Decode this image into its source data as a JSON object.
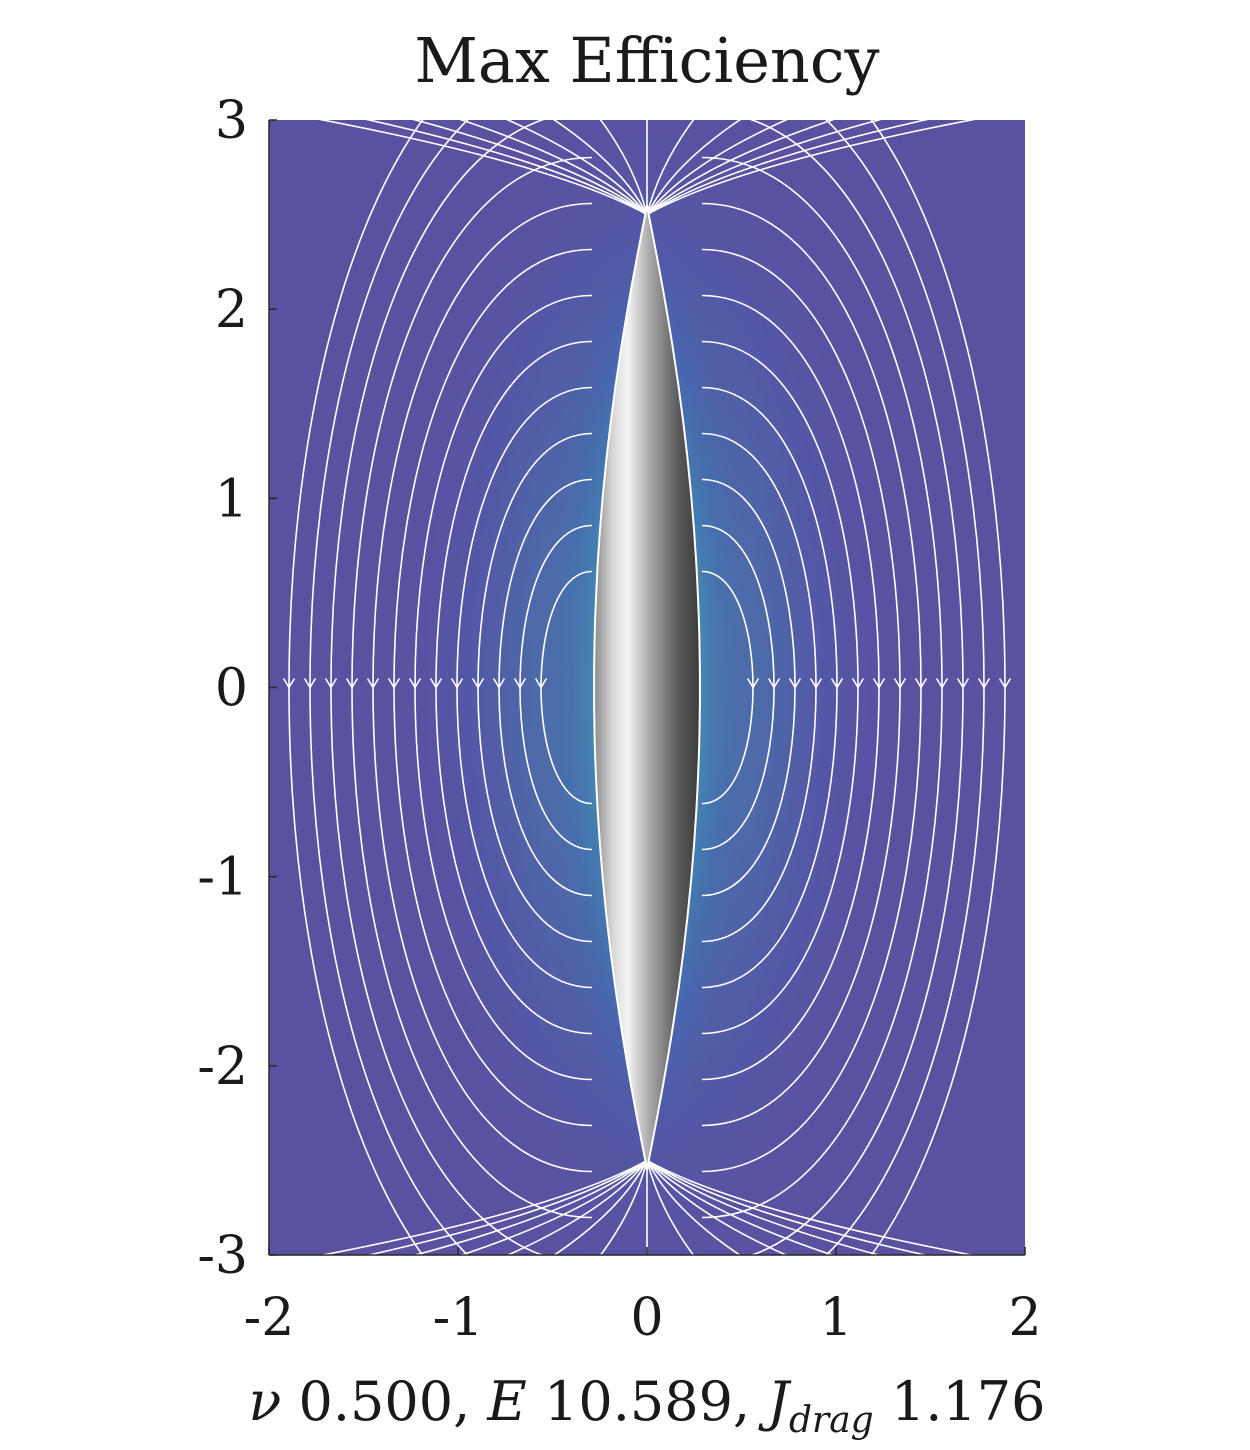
{
  "chart_data": {
    "type": "heatmap",
    "title": "Max Efficiency",
    "xlim": [
      -2,
      2
    ],
    "ylim": [
      -3,
      3
    ],
    "x_ticks": [
      "-2",
      "-1",
      "0",
      "1",
      "2"
    ],
    "y_ticks": [
      "3",
      "2",
      "1",
      "0",
      "-1",
      "-2",
      "-3"
    ],
    "xlabel": {
      "nu_symbol": "ν",
      "nu_value": "0.500,",
      "e_symbol": "E",
      "e_value": "10.589,",
      "j_symbol": "J",
      "j_subscript": "drag",
      "j_value": "1.176"
    },
    "body": {
      "shape": "spindle",
      "center": [
        0,
        0
      ],
      "half_length": 2.55,
      "half_width": 0.28
    },
    "field": {
      "description_shown": "flow speed colormap with white streamlines",
      "colormap": [
        "#5b4fa0",
        "#3f6ab4",
        "#2f8fb5",
        "#3fb6a5",
        "#9be08f",
        "#f6f4a0"
      ]
    },
    "colors": {
      "background_field": "#5a51a1",
      "streamline": "#ffffff",
      "body_light": "#f2f2f2",
      "body_dark": "#3c3c3c"
    }
  }
}
